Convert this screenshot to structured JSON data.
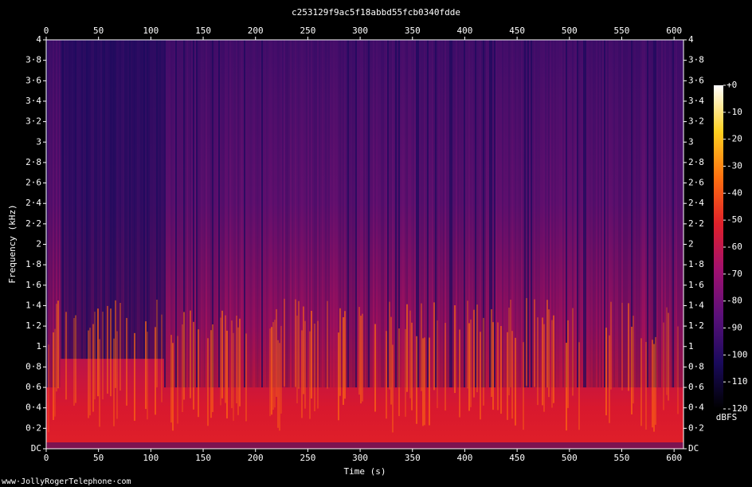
{
  "chart_data": {
    "type": "spectrogram",
    "title": "c253129f9ac5f18abbd55fcb0340fdde",
    "x_label": "Time (s)",
    "y_label": "Frequency (kHz)",
    "xlim": [
      0,
      609
    ],
    "xticks": [
      0,
      50,
      100,
      150,
      200,
      250,
      300,
      350,
      400,
      450,
      500,
      550,
      600
    ],
    "ylim": [
      0,
      4
    ],
    "yticks": [
      {
        "value": 0,
        "label": "DC"
      },
      {
        "value": 0.2,
        "label": "0·2"
      },
      {
        "value": 0.4,
        "label": "0·4"
      },
      {
        "value": 0.6,
        "label": "0·6"
      },
      {
        "value": 0.8,
        "label": "0·8"
      },
      1,
      {
        "value": 1.2,
        "label": "1·2"
      },
      {
        "value": 1.4,
        "label": "1·4"
      },
      {
        "value": 1.6,
        "label": "1·6"
      },
      {
        "value": 1.8,
        "label": "1·8"
      },
      2,
      {
        "value": 2.2,
        "label": "2·2"
      },
      {
        "value": 2.4,
        "label": "2·4"
      },
      {
        "value": 2.6,
        "label": "2·6"
      },
      {
        "value": 2.8,
        "label": "2·8"
      },
      3,
      {
        "value": 3.2,
        "label": "3·2"
      },
      {
        "value": 3.4,
        "label": "3·4"
      },
      {
        "value": 3.6,
        "label": "3·6"
      },
      {
        "value": 3.8,
        "label": "3·8"
      },
      4
    ],
    "colorbar": {
      "label": "dBFS",
      "lim": [
        -120,
        0
      ],
      "ticks": [
        {
          "value": 0,
          "label": "+0"
        },
        -10,
        -20,
        -30,
        -40,
        -50,
        -60,
        -70,
        -80,
        -90,
        -100,
        -110,
        -120
      ],
      "colors": [
        "#000000",
        "#1a0a5c",
        "#5a107a",
        "#a01070",
        "#e0202a",
        "#ff7010",
        "#ffd020",
        "#ffffff"
      ]
    },
    "footer": "www·JollyRogerTelephone·com"
  }
}
